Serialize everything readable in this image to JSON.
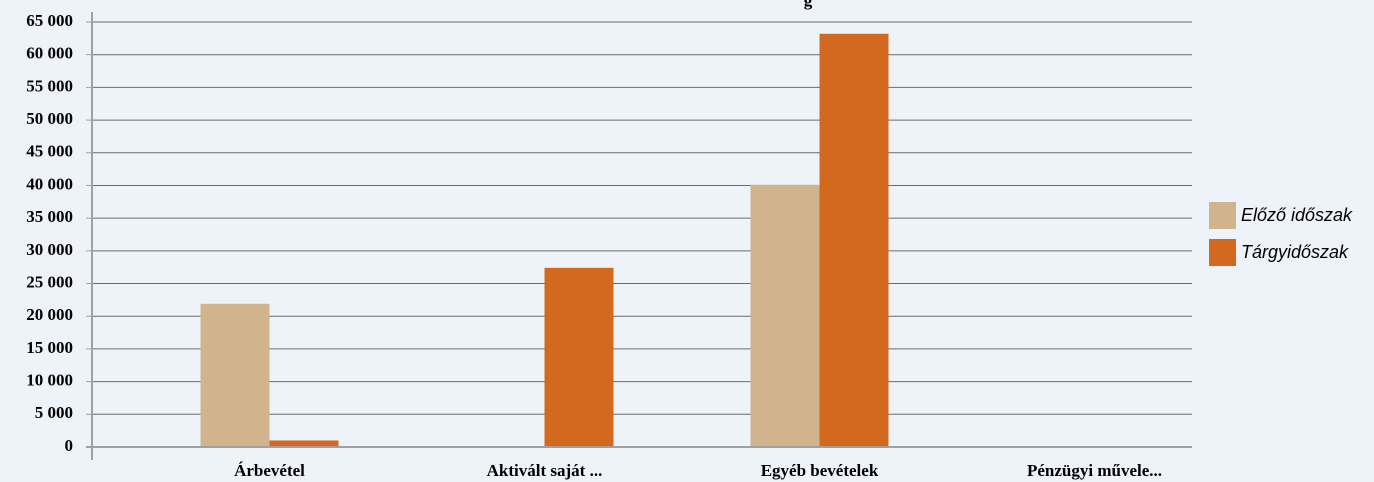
{
  "chart_data": {
    "type": "bar",
    "title": "g",
    "categories": [
      "Árbevétel",
      "Aktivált saját ...",
      "Egyéb bevételek",
      "Pénzügyi művele..."
    ],
    "series": [
      {
        "name": "Előző időszak",
        "color": "#d2b48c",
        "values": [
          21900,
          0,
          40100,
          0
        ]
      },
      {
        "name": "Tárgyidőszak",
        "color": "#d2691e",
        "values": [
          1000,
          27400,
          63200,
          0
        ]
      }
    ],
    "ylim": [
      0,
      65000
    ],
    "yticks": [
      0,
      5000,
      10000,
      15000,
      20000,
      25000,
      30000,
      35000,
      40000,
      45000,
      50000,
      55000,
      60000,
      65000
    ],
    "ytick_labels": [
      "0",
      "5 000",
      "10 000",
      "15 000",
      "20 000",
      "25 000",
      "30 000",
      "35 000",
      "40 000",
      "45 000",
      "50 000",
      "55 000",
      "60 000",
      "65 000"
    ],
    "grid": true,
    "legend_position": "right",
    "colors": {
      "background": "#eef2f9",
      "gridline": "#6b6b6b",
      "axis": "#a0a0a0"
    }
  }
}
